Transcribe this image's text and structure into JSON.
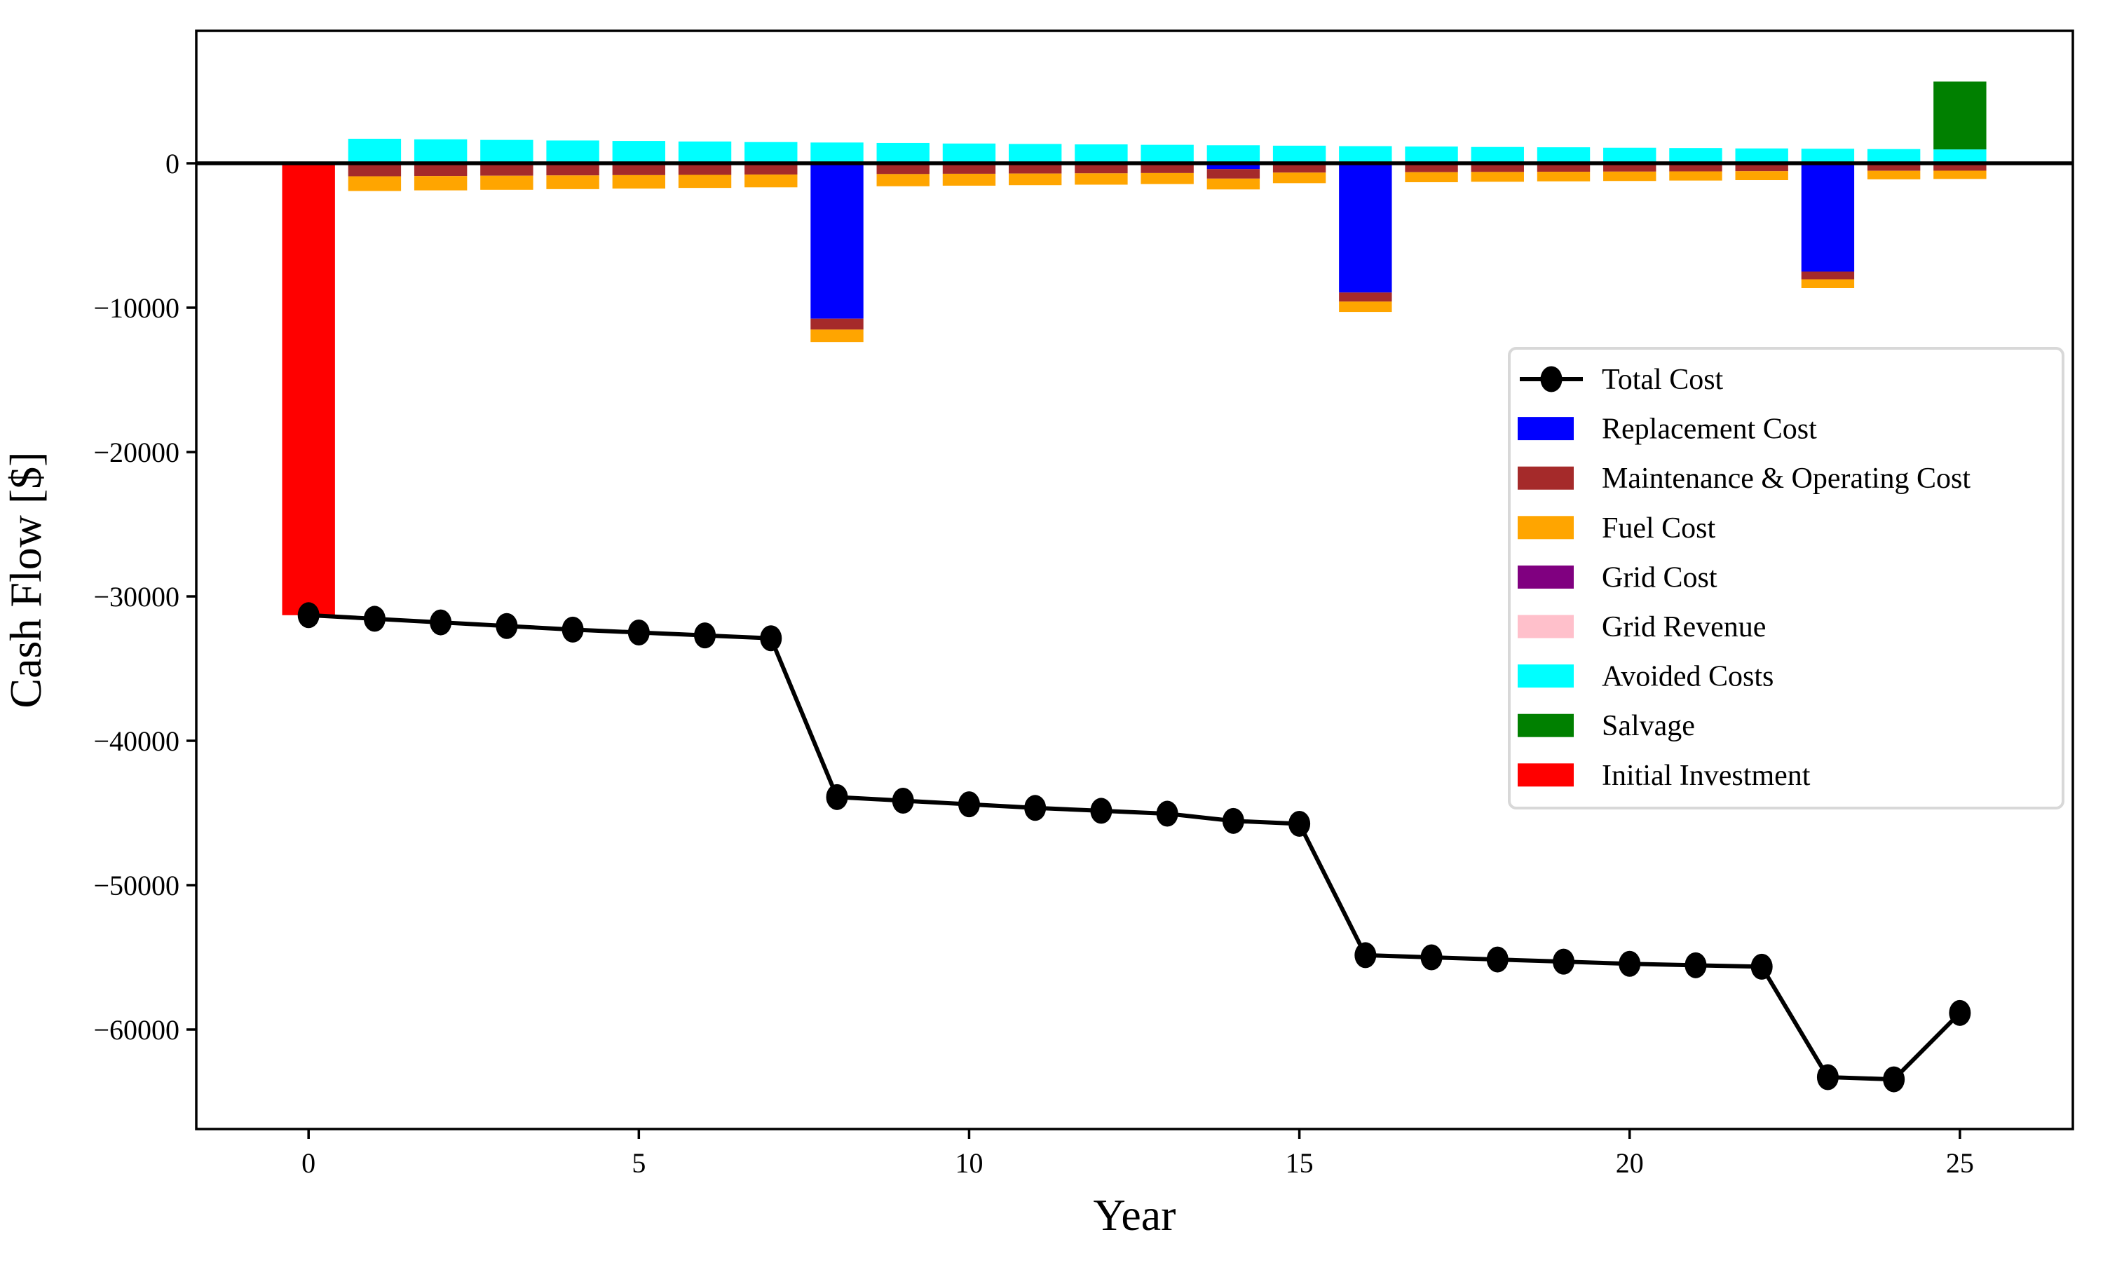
{
  "chart_data": {
    "type": "bar",
    "subtype": "stacked-bar-with-line",
    "title": "",
    "xlabel": "Year",
    "ylabel": "Cash Flow [$]",
    "x": [
      0,
      1,
      2,
      3,
      4,
      5,
      6,
      7,
      8,
      9,
      10,
      11,
      12,
      13,
      14,
      15,
      16,
      17,
      18,
      19,
      20,
      21,
      22,
      23,
      24,
      25
    ],
    "xlim": [
      -1.7,
      26.71
    ],
    "ylim": [
      -66893,
      9175
    ],
    "xticks": [
      0,
      5,
      10,
      15,
      20,
      25
    ],
    "xticklabels": [
      "0",
      "5",
      "10",
      "15",
      "20",
      "25"
    ],
    "yticks": [
      0,
      -10000,
      -20000,
      -30000,
      -40000,
      -50000,
      -60000
    ],
    "yticklabels": [
      "0",
      "−10000",
      "−20000",
      "−30000",
      "−40000",
      "−50000",
      "−60000"
    ],
    "grid": "off",
    "legend_position": "center-right",
    "bar_width_years": 0.8,
    "series": [
      {
        "key": "total_cost",
        "name": "Total Cost",
        "type": "line",
        "color": "#000000",
        "values": [
          -31300,
          -31550,
          -31800,
          -32050,
          -32300,
          -32500,
          -32700,
          -32900,
          -43900,
          -44150,
          -44400,
          -44650,
          -44850,
          -45050,
          -45550,
          -45750,
          -54850,
          -55000,
          -55150,
          -55300,
          -55450,
          -55550,
          -55650,
          -63300,
          -63450,
          -58850
        ]
      },
      {
        "key": "replacement_cost",
        "name": "Replacement Cost",
        "type": "bar",
        "color": "#0000FF",
        "values": [
          0,
          0,
          0,
          0,
          0,
          0,
          0,
          0,
          -10760,
          0,
          0,
          0,
          0,
          0,
          -400,
          0,
          -8950,
          0,
          0,
          0,
          0,
          0,
          0,
          -7500,
          0,
          0
        ]
      },
      {
        "key": "maintenance_operating_cost",
        "name": "Maintenance & Operating Cost",
        "type": "bar",
        "color": "#A52A2A",
        "values": [
          0,
          -900,
          -880,
          -860,
          -840,
          -820,
          -800,
          -780,
          -760,
          -745,
          -725,
          -710,
          -695,
          -675,
          -660,
          -645,
          -630,
          -615,
          -600,
          -585,
          -575,
          -560,
          -545,
          -535,
          -520,
          -510
        ]
      },
      {
        "key": "fuel_cost",
        "name": "Fuel Cost",
        "type": "bar",
        "color": "#FFA500",
        "values": [
          0,
          -1020,
          -995,
          -975,
          -950,
          -930,
          -905,
          -885,
          -865,
          -845,
          -825,
          -805,
          -785,
          -765,
          -750,
          -730,
          -715,
          -695,
          -680,
          -665,
          -650,
          -635,
          -620,
          -605,
          -590,
          -575
        ]
      },
      {
        "key": "grid_cost",
        "name": "Grid Cost",
        "type": "bar",
        "color": "#800080",
        "values": [
          0,
          0,
          0,
          0,
          0,
          0,
          0,
          0,
          0,
          0,
          0,
          0,
          0,
          0,
          0,
          0,
          0,
          0,
          0,
          0,
          0,
          0,
          0,
          0,
          0,
          0
        ]
      },
      {
        "key": "grid_revenue",
        "name": "Grid Revenue",
        "type": "bar",
        "color": "#FFC0CB",
        "values": [
          0,
          0,
          0,
          0,
          0,
          0,
          0,
          0,
          0,
          0,
          0,
          0,
          0,
          0,
          0,
          0,
          0,
          0,
          0,
          0,
          0,
          0,
          0,
          0,
          0,
          0
        ]
      },
      {
        "key": "avoided_costs",
        "name": "Avoided Costs",
        "type": "bar",
        "color": "#00FFFF",
        "values": [
          0,
          1700,
          1660,
          1620,
          1580,
          1550,
          1510,
          1470,
          1440,
          1410,
          1370,
          1340,
          1310,
          1280,
          1250,
          1220,
          1190,
          1160,
          1130,
          1110,
          1080,
          1060,
          1030,
          1010,
          985,
          960
        ]
      },
      {
        "key": "salvage",
        "name": "Salvage",
        "type": "bar",
        "color": "#008000",
        "values": [
          0,
          0,
          0,
          0,
          0,
          0,
          0,
          0,
          0,
          0,
          0,
          0,
          0,
          0,
          0,
          0,
          0,
          0,
          0,
          0,
          0,
          0,
          0,
          0,
          0,
          4700
        ]
      },
      {
        "key": "initial_investment",
        "name": "Initial Investment",
        "type": "bar",
        "color": "#FF0000",
        "values": [
          -31300,
          0,
          0,
          0,
          0,
          0,
          0,
          0,
          0,
          0,
          0,
          0,
          0,
          0,
          0,
          0,
          0,
          0,
          0,
          0,
          0,
          0,
          0,
          0,
          0,
          0
        ]
      }
    ]
  },
  "style": {
    "spine_color": "#000000",
    "zero_line_color": "#000000",
    "legend_border_color": "#D8D8D8",
    "legend_bg_color": "#FFFFFF"
  }
}
